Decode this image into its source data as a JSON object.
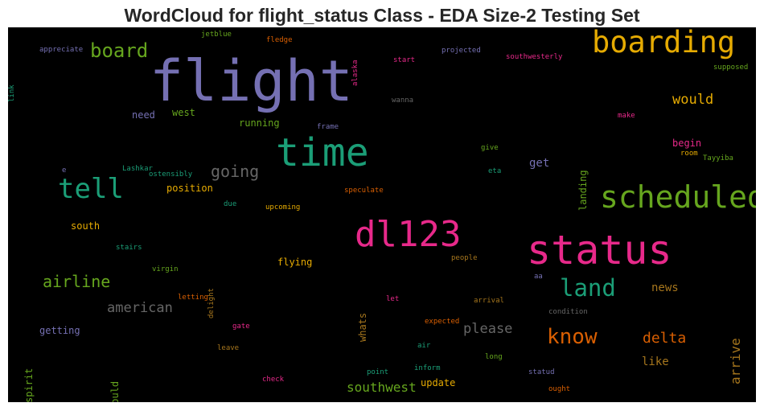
{
  "title": "WordCloud for flight_status Class - EDA Size-2 Testing Set",
  "colors": {
    "purple": "#7570b3",
    "teal": "#1b9e77",
    "orange": "#d95f02",
    "pink": "#e7298a",
    "green": "#66a61e",
    "gold": "#e6ab02",
    "brown": "#a6761d",
    "gray": "#666666",
    "background": "#000000"
  },
  "words": [
    {
      "text": "flight",
      "color": "#7570b3"
    },
    {
      "text": "boarding",
      "color": "#e6ab02"
    },
    {
      "text": "time",
      "color": "#1b9e77"
    },
    {
      "text": "scheduled",
      "color": "#66a61e"
    },
    {
      "text": "status",
      "color": "#e7298a"
    },
    {
      "text": "dl123",
      "color": "#e7298a"
    },
    {
      "text": "tell",
      "color": "#1b9e77"
    },
    {
      "text": "board",
      "color": "#66a61e"
    },
    {
      "text": "land",
      "color": "#1b9e77"
    },
    {
      "text": "know",
      "color": "#d95f02"
    },
    {
      "text": "airline",
      "color": "#66a61e"
    },
    {
      "text": "going",
      "color": "#666666"
    },
    {
      "text": "american",
      "color": "#666666"
    },
    {
      "text": "delta",
      "color": "#d95f02"
    },
    {
      "text": "would",
      "color": "#e6ab02"
    },
    {
      "text": "southwest",
      "color": "#66a61e"
    },
    {
      "text": "please",
      "color": "#666666"
    },
    {
      "text": "arrive",
      "color": "#a6761d"
    },
    {
      "text": "news",
      "color": "#a6761d"
    },
    {
      "text": "like",
      "color": "#a6761d"
    },
    {
      "text": "get",
      "color": "#7570b3"
    },
    {
      "text": "getting",
      "color": "#7570b3"
    },
    {
      "text": "flying",
      "color": "#e6ab02"
    },
    {
      "text": "update",
      "color": "#e6ab02"
    },
    {
      "text": "whats",
      "color": "#a6761d"
    },
    {
      "text": "landing",
      "color": "#66a61e"
    },
    {
      "text": "need",
      "color": "#7570b3"
    },
    {
      "text": "west",
      "color": "#66a61e"
    },
    {
      "text": "running",
      "color": "#66a61e"
    },
    {
      "text": "position",
      "color": "#e6ab02"
    },
    {
      "text": "south",
      "color": "#e6ab02"
    },
    {
      "text": "begin",
      "color": "#e7298a"
    },
    {
      "text": "spirit",
      "color": "#66a61e"
    },
    {
      "text": "could",
      "color": "#66a61e"
    },
    {
      "text": "jetblue",
      "color": "#66a61e"
    },
    {
      "text": "fledge",
      "color": "#d95f02"
    },
    {
      "text": "alaska",
      "color": "#e7298a"
    },
    {
      "text": "projected",
      "color": "#7570b3"
    },
    {
      "text": "appreciate",
      "color": "#7570b3"
    },
    {
      "text": "start",
      "color": "#e7298a"
    },
    {
      "text": "southwesterly",
      "color": "#e7298a"
    },
    {
      "text": "supposed",
      "color": "#66a61e"
    },
    {
      "text": "link",
      "color": "#1b9e77"
    },
    {
      "text": "wanna",
      "color": "#666666"
    },
    {
      "text": "make",
      "color": "#e7298a"
    },
    {
      "text": "frame",
      "color": "#7570b3"
    },
    {
      "text": "give",
      "color": "#66a61e"
    },
    {
      "text": "room",
      "color": "#e6ab02"
    },
    {
      "text": "Tayyiba",
      "color": "#66a61e"
    },
    {
      "text": "eta",
      "color": "#1b9e77"
    },
    {
      "text": "e",
      "color": "#7570b3"
    },
    {
      "text": "Lashkar",
      "color": "#1b9e77"
    },
    {
      "text": "ostensibly",
      "color": "#1b9e77"
    },
    {
      "text": "speculate",
      "color": "#d95f02"
    },
    {
      "text": "due",
      "color": "#1b9e77"
    },
    {
      "text": "upcoming",
      "color": "#e6ab02"
    },
    {
      "text": "stairs",
      "color": "#1b9e77"
    },
    {
      "text": "virgin",
      "color": "#66a61e"
    },
    {
      "text": "delight",
      "color": "#a6761d"
    },
    {
      "text": "people",
      "color": "#a6761d"
    },
    {
      "text": "aa",
      "color": "#7570b3"
    },
    {
      "text": "letting",
      "color": "#d95f02"
    },
    {
      "text": "let",
      "color": "#e7298a"
    },
    {
      "text": "arrival",
      "color": "#a6761d"
    },
    {
      "text": "condition",
      "color": "#666666"
    },
    {
      "text": "gate",
      "color": "#e7298a"
    },
    {
      "text": "expected",
      "color": "#d95f02"
    },
    {
      "text": "leave",
      "color": "#a6761d"
    },
    {
      "text": "air",
      "color": "#1b9e77"
    },
    {
      "text": "long",
      "color": "#66a61e"
    },
    {
      "text": "inform",
      "color": "#1b9e77"
    },
    {
      "text": "point",
      "color": "#1b9e77"
    },
    {
      "text": "statud",
      "color": "#7570b3"
    },
    {
      "text": "check",
      "color": "#e7298a"
    },
    {
      "text": "ought",
      "color": "#d95f02"
    }
  ]
}
